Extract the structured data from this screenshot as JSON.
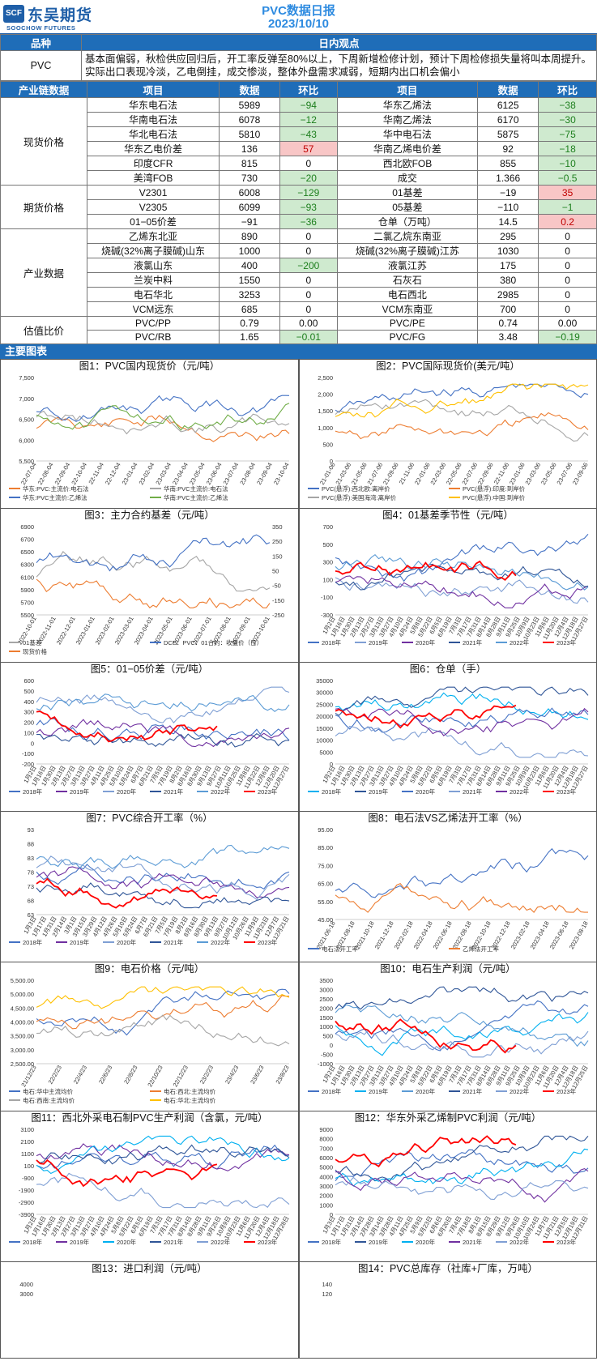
{
  "header": {
    "company_cn": "东吴期货",
    "company_en": "SOOCHOW FUTURES",
    "logo_mark": "SCF",
    "report_title": "PVC数据日报",
    "report_date": "2023/10/10"
  },
  "overview": {
    "col_variety": "品种",
    "col_view": "日内观点",
    "variety": "PVC",
    "view_text": "基本面偏弱，秋检供应回归后，开工率反弹至80%以上，下周新增检修计划，预计下周检修损失量将叫本周提升。实际出口表现冷淡，乙电倒挂，成交惨淡，整体外盘需求减弱，短期内出口机会偏小"
  },
  "table": {
    "headers": [
      "产业链数据",
      "项目",
      "数据",
      "环比",
      "项目",
      "数据",
      "环比"
    ],
    "groups": [
      {
        "category": "现货价格",
        "rows": [
          [
            "华东电石法",
            "5989",
            "−94",
            "华东乙烯法",
            "6125",
            "−38"
          ],
          [
            "华南电石法",
            "6078",
            "−12",
            "华南乙烯法",
            "6170",
            "−30"
          ],
          [
            "华北电石法",
            "5810",
            "−43",
            "华中电石法",
            "5875",
            "−75"
          ],
          [
            "华东乙电价差",
            "136",
            "57",
            "华南乙烯电价差",
            "92",
            "−18"
          ],
          [
            "印度CFR",
            "815",
            "0",
            "西北欧FOB",
            "855",
            "−10"
          ],
          [
            "美湾FOB",
            "730",
            "−20",
            "成交",
            "1.366",
            "−0.5"
          ]
        ]
      },
      {
        "category": "期货价格",
        "rows": [
          [
            "V2301",
            "6008",
            "−129",
            "01基差",
            "−19",
            "35"
          ],
          [
            "V2305",
            "6099",
            "−93",
            "05基差",
            "−110",
            "−1"
          ],
          [
            "01−05价差",
            "−91",
            "−36",
            "仓单（万吨）",
            "14.5",
            "0.2"
          ]
        ]
      },
      {
        "category": "产业数据",
        "rows": [
          [
            "乙烯东北亚",
            "890",
            "0",
            "二氯乙烷东南亚",
            "295",
            "0"
          ],
          [
            "烧碱(32%离子膜碱)山东",
            "1000",
            "0",
            "烧碱(32%离子膜碱)江苏",
            "1030",
            "0"
          ],
          [
            "液氯山东",
            "400",
            "−200",
            "液氯江苏",
            "175",
            "0"
          ],
          [
            "兰炭中料",
            "1550",
            "0",
            "石灰石",
            "380",
            "0"
          ],
          [
            "电石华北",
            "3253",
            "0",
            "电石西北",
            "2985",
            "0"
          ],
          [
            "VCM远东",
            "685",
            "0",
            "VCM东南亚",
            "700",
            "0"
          ]
        ]
      },
      {
        "category": "估值比价",
        "rows": [
          [
            "PVC/PP",
            "0.79",
            "0.00",
            "PVC/PE",
            "0.74",
            "0.00"
          ],
          [
            "PVC/RB",
            "1.65",
            "−0.01",
            "PVC/FG",
            "3.48",
            "−0.19"
          ]
        ]
      }
    ]
  },
  "charts_section_title": "主要图表",
  "colors": {
    "blue_header": "#1f6db8",
    "title_blue": "#2e8be0",
    "positive_bg": "#f8c6c6",
    "negative_bg": "#cfeacf"
  },
  "charts": [
    {
      "title": "图1：PVC国内现货价（元/吨）",
      "yticks": [
        "7,500",
        "7,000",
        "6,500",
        "6,000",
        "5,500"
      ],
      "xticks": [
        "22-07-04",
        "22-08-04",
        "22-09-04",
        "22-10-04",
        "22-11-04",
        "22-12-04",
        "23-01-04",
        "23-02-04",
        "23-03-04",
        "23-04-04",
        "23-05-04",
        "23-06-04",
        "23-07-04",
        "23-08-04",
        "23-09-04",
        "23-10-04"
      ],
      "legend": [
        "华东:PVC:主流价:电石法",
        "华南:PVC主流价:电石法",
        "华东:PVC主流价:乙烯法",
        "华南:PVC主流价:乙烯法"
      ],
      "colors": [
        "#ed7d31",
        "#a5a5a5",
        "#4472c4",
        "#70ad47"
      ]
    },
    {
      "title": "图2：PVC国际现货价(美元/吨）",
      "yticks": [
        "2,500",
        "2,000",
        "1,500",
        "1,000",
        "500",
        "0"
      ],
      "xticks": [
        "21-01-06",
        "21-03-06",
        "21-05-06",
        "21-07-06",
        "21-09-06",
        "21-11-06",
        "22-01-06",
        "22-03-06",
        "22-05-06",
        "22-07-06",
        "22-09-06",
        "22-11-06",
        "23-01-06",
        "23-03-06",
        "23-05-06",
        "23-07-06",
        "23-09-06"
      ],
      "legend": [
        "PVC(悬浮):西北欧:离岸价",
        "PVC(悬浮):印度:到岸价",
        "PVC(悬浮):美国海湾:离岸价",
        "PVC(悬浮):中国:到岸价"
      ],
      "colors": [
        "#4472c4",
        "#ed7d31",
        "#a5a5a5",
        "#ffc000"
      ]
    },
    {
      "title": "图3：主力合约基差（元/吨）",
      "yticks": [
        "6900",
        "6700",
        "6500",
        "6300",
        "6100",
        "5900",
        "5700",
        "5500"
      ],
      "y2ticks": [
        "350",
        "250",
        "150",
        "50",
        "-50",
        "-150",
        "-250"
      ],
      "xticks": [
        "2022-10-01",
        "2022-11-01",
        "2022-12-01",
        "2023-01-01",
        "2023-02-01",
        "2023-03-01",
        "2023-04-01",
        "2023-05-01",
        "2023-06-01",
        "2023-07-01",
        "2023-08-01",
        "2023-09-01",
        "2023-10-01"
      ],
      "legend": [
        "01基差",
        "DCE：PVC：01合约：收盘价（日）",
        "现货价格"
      ],
      "colors": [
        "#a5a5a5",
        "#4472c4",
        "#ed7d31"
      ]
    },
    {
      "title": "图4：01基差季节性（元/吨）",
      "yticks": [
        "700",
        "500",
        "300",
        "100",
        "-100",
        "-300"
      ],
      "xticks": [
        "1月2日",
        "1月16日",
        "1月30日",
        "2月13日",
        "2月27日",
        "3月13日",
        "3月27日",
        "4月10日",
        "4月24日",
        "5月8日",
        "5月22日",
        "6月5日",
        "6月19日",
        "7月3日",
        "7月17日",
        "7月31日",
        "8月14日",
        "8月28日",
        "9月11日",
        "9月25日",
        "10月9日",
        "10月23日",
        "11月6日",
        "11月20日",
        "12月4日",
        "12月18日",
        "12月27日"
      ],
      "legend": [
        "2018年",
        "2019年",
        "2020年",
        "2021年",
        "2022年",
        "2023年"
      ],
      "colors": [
        "#4472c4",
        "#7f9fd4",
        "#7030a0",
        "#2f5597",
        "#5b9bd5",
        "#ff0000"
      ]
    },
    {
      "title": "图5：01−05价差（元/吨）",
      "yticks": [
        "600",
        "500",
        "400",
        "300",
        "200",
        "100",
        "0",
        "-100",
        "-200"
      ],
      "xticks": [
        "1月2日",
        "1月16日",
        "1月30日",
        "2月13日",
        "2月27日",
        "3月13日",
        "3月27日",
        "4月11日",
        "4月25日",
        "5月10日",
        "5月24日",
        "6月7日",
        "6月21日",
        "7月5日",
        "7月19日",
        "8月2日",
        "8月16日",
        "8月30日",
        "9月13日",
        "9月27日",
        "10月11日",
        "10月25日",
        "11月8日",
        "11月22日",
        "12月6日",
        "12月20日",
        "12月27日"
      ],
      "legend": [
        "2018年",
        "2019年",
        "2020年",
        "2021年",
        "2022年",
        "2023年"
      ],
      "colors": [
        "#4472c4",
        "#7030a0",
        "#7f9fd4",
        "#2f5597",
        "#5b9bd5",
        "#ff0000"
      ]
    },
    {
      "title": "图6：仓单（手）",
      "yticks": [
        "35000",
        "30000",
        "25000",
        "20000",
        "15000",
        "10000",
        "5000",
        "0"
      ],
      "xticks": [
        "1月2日",
        "1月16日",
        "1月30日",
        "2月13日",
        "2月27日",
        "3月13日",
        "3月27日",
        "4月10日",
        "4月24日",
        "5月8日",
        "5月22日",
        "6月5日",
        "6月19日",
        "7月3日",
        "7月17日",
        "7月31日",
        "8月14日",
        "8月28日",
        "9月11日",
        "9月25日",
        "10月9日",
        "10月23日",
        "11月6日",
        "11月20日",
        "12月4日",
        "12月18日",
        "12月27日"
      ],
      "legend": [
        "2018年",
        "2019年",
        "2020年",
        "2021年",
        "2022年",
        "2023年"
      ],
      "colors": [
        "#00b0f0",
        "#2f5597",
        "#4472c4",
        "#7f9fd4",
        "#7030a0",
        "#ff0000"
      ]
    },
    {
      "title": "图7：PVC综合开工率（%）",
      "yticks": [
        "93",
        "88",
        "83",
        "78",
        "73",
        "68",
        "63"
      ],
      "xticks": [
        "1月3日",
        "1月17日",
        "1月31日",
        "2月14日",
        "3月1日",
        "3月15日",
        "3月29日",
        "4月12日",
        "4月26日",
        "5月10日",
        "5月24日",
        "6月7日",
        "6月21日",
        "7月5日",
        "7月19日",
        "8月2日",
        "8月16日",
        "8月30日",
        "9月13日",
        "9月27日",
        "10月12日",
        "10月26日",
        "11月9日",
        "11月23日",
        "12月7日",
        "12月21日"
      ],
      "legend": [
        "2018年",
        "2019年",
        "2020年",
        "2021年",
        "2022年",
        "2023年"
      ],
      "colors": [
        "#4472c4",
        "#7030a0",
        "#7f9fd4",
        "#2f5597",
        "#5b9bd5",
        "#ff0000"
      ]
    },
    {
      "title": "图8：电石法VS乙烯法开工率（%）",
      "yticks": [
        "95.00",
        "85.00",
        "75.00",
        "65.00",
        "55.00",
        "45.00"
      ],
      "xticks": [
        "2021-06-18",
        "2021-08-18",
        "2021-10-18",
        "2021-12-18",
        "2022-02-18",
        "2022-04-18",
        "2022-06-18",
        "2022-08-18",
        "2022-10-18",
        "2022-12-18",
        "2023-02-18",
        "2023-04-18",
        "2023-06-18",
        "2023-08-18"
      ],
      "legend": [
        "电石法开工率",
        "乙烯法开工率"
      ],
      "colors": [
        "#4472c4",
        "#ed7d31"
      ]
    },
    {
      "title": "图9：电石价格（元/吨）",
      "yticks": [
        "5,500.00",
        "5,000.00",
        "4,500.00",
        "4,000.00",
        "3,500.00",
        "3,000.00",
        "2,500.00"
      ],
      "xticks": [
        "21/12/23",
        "22/2/23",
        "22/4/23",
        "22/6/23",
        "22/8/23",
        "22/10/23",
        "22/12/23",
        "23/2/23",
        "23/4/23",
        "23/6/23",
        "23/8/23"
      ],
      "legend": [
        "电石:华中主流均价",
        "电石:西北:主流均价",
        "电石:西南:主流均价",
        "电石:华北:主流均价"
      ],
      "colors": [
        "#4472c4",
        "#ed7d31",
        "#a5a5a5",
        "#ffc000"
      ]
    },
    {
      "title": "图10：电石生产利润（元/吨）",
      "yticks": [
        "3500",
        "3000",
        "2500",
        "2000",
        "1500",
        "1000",
        "500",
        "0",
        "-500",
        "-1000"
      ],
      "xticks": [
        "1月2日",
        "1月16日",
        "1月30日",
        "2月13日",
        "2月27日",
        "3月13日",
        "3月27日",
        "4月10日",
        "4月24日",
        "5月8日",
        "5月22日",
        "6月5日",
        "6月19日",
        "7月3日",
        "7月17日",
        "7月31日",
        "8月14日",
        "8月28日",
        "9月11日",
        "9月25日",
        "10月9日",
        "10月23日",
        "11月6日",
        "11月20日",
        "12月4日",
        "12月18日",
        "12月25日"
      ],
      "legend": [
        "2018年",
        "2019年",
        "2020年",
        "2021年",
        "2022年",
        "2023年"
      ],
      "colors": [
        "#4472c4",
        "#00b0f0",
        "#5b9bd5",
        "#2f5597",
        "#7f9fd4",
        "#ff0000"
      ]
    },
    {
      "title": "图11：西北外采电石制PVC生产利润（含氯，元/吨）",
      "yticks": [
        "3100",
        "2100",
        "1100",
        "100",
        "-900",
        "-1900",
        "-2900",
        "-3900"
      ],
      "xticks": [
        "1月2日",
        "1月16日",
        "1月30日",
        "2月13日",
        "2月27日",
        "3月13日",
        "3月27日",
        "4月10日",
        "4月24日",
        "5月8日",
        "5月22日",
        "6月5日",
        "6月19日",
        "7月3日",
        "7月17日",
        "7月31日",
        "8月14日",
        "8月28日",
        "9月11日",
        "9月25日",
        "10月9日",
        "10月23日",
        "11月6日",
        "11月20日",
        "12月4日",
        "12月18日",
        "12月28日"
      ],
      "legend": [
        "2018年",
        "2019年",
        "2020年",
        "2021年",
        "2022年",
        "2023年"
      ],
      "colors": [
        "#4472c4",
        "#7030a0",
        "#00b0f0",
        "#2f5597",
        "#7f9fd4",
        "#ff0000"
      ]
    },
    {
      "title": "图12：华东外采乙烯制PVC利润（元/吨）",
      "yticks": [
        "9000",
        "8000",
        "7000",
        "6000",
        "5000",
        "4000",
        "3000",
        "2000",
        "1000",
        "0"
      ],
      "xticks": [
        "1月3日",
        "1月17日",
        "1月31日",
        "2月14日",
        "2月28日",
        "3月14日",
        "3月28日",
        "4月11日",
        "4月25日",
        "5月9日",
        "5月23日",
        "6月6日",
        "6月20日",
        "7月4日",
        "7月18日",
        "8月1日",
        "8月15日",
        "8月29日",
        "9月12日",
        "9月26日",
        "10月10日",
        "10月24日",
        "11月7日",
        "11月21日",
        "12月5日",
        "12月19日",
        "12月31日"
      ],
      "legend": [
        "2018年",
        "2019年",
        "2020年",
        "2021年",
        "2022年",
        "2023年"
      ],
      "colors": [
        "#4472c4",
        "#2f5597",
        "#00b0f0",
        "#7030a0",
        "#7f9fd4",
        "#ff0000"
      ]
    }
  ],
  "partial_charts": [
    {
      "title": "图13：进口利润（元/吨）",
      "yticks": [
        "4000",
        "3000"
      ]
    },
    {
      "title": "图14：PVC总库存（社库+厂库，万吨）",
      "yticks": [
        "140",
        "120"
      ]
    }
  ]
}
